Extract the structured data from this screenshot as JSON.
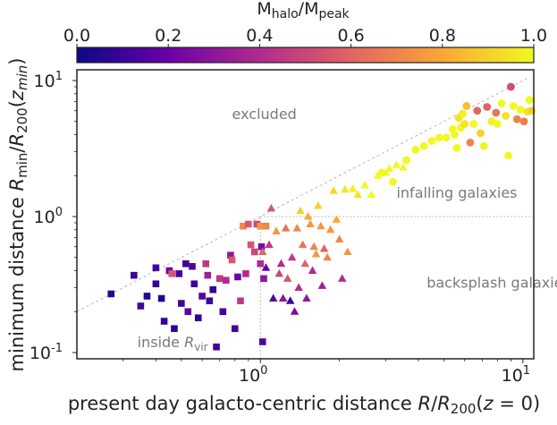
{
  "chart_data": {
    "type": "scatter",
    "xscale": "log",
    "yscale": "log",
    "xlim": [
      0.2,
      11
    ],
    "ylim": [
      0.09,
      12
    ],
    "xlabel": "present day galacto-centric distance R/R200(z = 0)",
    "ylabel": "minimum distance Rmin/R200(zmin)",
    "x_tick_labels": [
      {
        "value": 1,
        "label": "10^0"
      },
      {
        "value": 10,
        "label": "10^1"
      }
    ],
    "y_tick_labels": [
      {
        "value": 0.1,
        "label": "10^-1"
      },
      {
        "value": 1,
        "label": "10^0"
      },
      {
        "value": 10,
        "label": "10^1"
      }
    ],
    "colorbar": {
      "label": "M_halo/M_peak",
      "min": 0.0,
      "max": 1.0,
      "ticks": [
        "0.0",
        "0.2",
        "0.4",
        "0.6",
        "0.8",
        "1.0"
      ],
      "colormap": "plasma",
      "stops": [
        "#0d0887",
        "#6a00a8",
        "#b12a90",
        "#e16462",
        "#fca636",
        "#f0f921"
      ]
    },
    "reference_lines": [
      {
        "name": "one-to-one",
        "style": "dashed",
        "points": [
          [
            0.2,
            0.2
          ],
          [
            10.6,
            10.6
          ]
        ]
      },
      {
        "name": "x = 1 boundary",
        "style": "dotted",
        "points": [
          [
            1,
            0.09
          ],
          [
            1,
            1
          ]
        ]
      },
      {
        "name": "y = 1 boundary",
        "style": "dotted",
        "points": [
          [
            1,
            1
          ],
          [
            11,
            1
          ]
        ]
      }
    ],
    "annotations": [
      {
        "text": "excluded",
        "x": 0.78,
        "y": 5.2
      },
      {
        "text": "infalling galaxies",
        "x": 3.3,
        "y": 1.38
      },
      {
        "text": "backsplash galaxies",
        "x": 4.3,
        "y": 0.3
      },
      {
        "text_main": "inside R",
        "text_sub": "vir",
        "x": 0.34,
        "y": 0.11
      }
    ],
    "series": [
      {
        "marker": "square",
        "points": [
          [
            0.27,
            0.27,
            0.05
          ],
          [
            0.33,
            0.37,
            0.1
          ],
          [
            0.35,
            0.22,
            0.12
          ],
          [
            0.37,
            0.26,
            0.05
          ],
          [
            0.4,
            0.42,
            0.12
          ],
          [
            0.4,
            0.32,
            0.08
          ],
          [
            0.42,
            0.25,
            0.05
          ],
          [
            0.43,
            0.17,
            0.08
          ],
          [
            0.45,
            0.4,
            0.2
          ],
          [
            0.46,
            0.38,
            0.55
          ],
          [
            0.47,
            0.15,
            0.06
          ],
          [
            0.49,
            0.38,
            0.12
          ],
          [
            0.5,
            0.23,
            0.12
          ],
          [
            0.52,
            0.45,
            0.1
          ],
          [
            0.53,
            0.2,
            0.18
          ],
          [
            0.55,
            0.43,
            0.15
          ],
          [
            0.56,
            0.32,
            0.1
          ],
          [
            0.58,
            0.18,
            0.08
          ],
          [
            0.6,
            0.26,
            0.15
          ],
          [
            0.62,
            0.45,
            0.45
          ],
          [
            0.63,
            0.37,
            0.35
          ],
          [
            0.64,
            0.24,
            0.1
          ],
          [
            0.66,
            0.29,
            0.08
          ],
          [
            0.68,
            0.11,
            0.1
          ],
          [
            0.7,
            0.35,
            0.45
          ],
          [
            0.72,
            0.2,
            0.12
          ],
          [
            0.74,
            0.34,
            0.4
          ],
          [
            0.77,
            0.52,
            0.3
          ],
          [
            0.78,
            0.48,
            0.55
          ],
          [
            0.8,
            0.15,
            0.12
          ],
          [
            0.82,
            0.36,
            0.2
          ],
          [
            0.84,
            0.24,
            0.45
          ],
          [
            0.86,
            0.85,
            0.7
          ],
          [
            0.88,
            0.38,
            0.4
          ],
          [
            0.9,
            0.88,
            0.55
          ],
          [
            0.92,
            0.62,
            0.55
          ],
          [
            0.95,
            0.55,
            0.5
          ],
          [
            0.97,
            0.88,
            0.5
          ],
          [
            1.0,
            0.85,
            0.75
          ],
          [
            1.0,
            0.45,
            0.4
          ],
          [
            1.01,
            0.6,
            0.25
          ],
          [
            1.02,
            0.12,
            0.15
          ],
          [
            1.03,
            0.35,
            0.3
          ],
          [
            1.05,
            0.85,
            0.7
          ]
        ]
      },
      {
        "marker": "triangle",
        "points": [
          [
            1.02,
            0.55,
            0.6
          ],
          [
            1.05,
            0.42,
            0.2
          ],
          [
            1.08,
            0.62,
            0.45
          ],
          [
            1.1,
            1.15,
            0.55
          ],
          [
            1.12,
            0.25,
            0.15
          ],
          [
            1.15,
            0.78,
            0.75
          ],
          [
            1.18,
            0.38,
            0.5
          ],
          [
            1.2,
            0.45,
            0.4
          ],
          [
            1.22,
            0.25,
            0.3
          ],
          [
            1.25,
            0.82,
            0.65
          ],
          [
            1.27,
            0.35,
            0.55
          ],
          [
            1.3,
            0.24,
            0.1
          ],
          [
            1.32,
            0.5,
            0.45
          ],
          [
            1.35,
            0.2,
            0.25
          ],
          [
            1.38,
            0.82,
            0.7
          ],
          [
            1.4,
            0.3,
            0.4
          ],
          [
            1.42,
            1.1,
            0.9
          ],
          [
            1.45,
            0.62,
            0.65
          ],
          [
            1.48,
            0.45,
            0.6
          ],
          [
            1.5,
            0.25,
            0.3
          ],
          [
            1.52,
            1.0,
            0.8
          ],
          [
            1.55,
            0.88,
            0.75
          ],
          [
            1.58,
            0.4,
            0.4
          ],
          [
            1.6,
            0.6,
            0.7
          ],
          [
            1.63,
            0.53,
            0.75
          ],
          [
            1.66,
            1.2,
            0.9
          ],
          [
            1.7,
            0.85,
            0.75
          ],
          [
            1.72,
            0.31,
            0.35
          ],
          [
            1.75,
            0.58,
            0.6
          ],
          [
            1.8,
            0.5,
            0.7
          ],
          [
            1.85,
            0.8,
            0.75
          ],
          [
            1.9,
            1.55,
            0.92
          ],
          [
            1.95,
            0.95,
            0.8
          ],
          [
            2.0,
            0.68,
            0.7
          ],
          [
            2.05,
            0.35,
            0.4
          ],
          [
            2.1,
            1.58,
            0.95
          ],
          [
            2.15,
            0.55,
            0.75
          ],
          [
            2.25,
            1.6,
            0.98
          ],
          [
            2.35,
            1.45,
            0.95
          ],
          [
            2.5,
            1.7,
            1.0
          ],
          [
            2.65,
            1.45,
            1.0
          ],
          [
            2.8,
            2.0,
            1.0
          ],
          [
            3.0,
            2.1,
            1.0
          ],
          [
            3.1,
            2.25,
            1.0
          ],
          [
            3.3,
            2.4,
            1.0
          ],
          [
            3.5,
            2.3,
            1.0
          ]
        ]
      },
      {
        "marker": "circle",
        "points": [
          [
            2.9,
            2.1,
            1.0
          ],
          [
            3.2,
            1.8,
            1.0
          ],
          [
            3.6,
            2.6,
            1.0
          ],
          [
            3.9,
            3.1,
            1.0
          ],
          [
            4.2,
            3.3,
            1.0
          ],
          [
            4.5,
            3.6,
            1.0
          ],
          [
            4.8,
            3.8,
            1.0
          ],
          [
            5.1,
            3.8,
            1.0
          ],
          [
            5.4,
            4.4,
            1.0
          ],
          [
            5.5,
            4.0,
            1.0
          ],
          [
            5.6,
            3.2,
            1.0
          ],
          [
            5.7,
            5.3,
            0.95
          ],
          [
            5.8,
            4.5,
            1.0
          ],
          [
            5.9,
            5.7,
            0.98
          ],
          [
            6.0,
            4.8,
            0.95
          ],
          [
            6.1,
            6.5,
            0.85
          ],
          [
            6.3,
            3.5,
            0.7
          ],
          [
            6.5,
            4.8,
            1.0
          ],
          [
            6.7,
            6.0,
            0.6
          ],
          [
            6.9,
            4.1,
            0.9
          ],
          [
            7.1,
            3.3,
            0.98
          ],
          [
            7.3,
            6.4,
            0.6
          ],
          [
            7.6,
            5.0,
            0.98
          ],
          [
            7.9,
            5.8,
            0.65
          ],
          [
            8.0,
            4.8,
            1.0
          ],
          [
            8.3,
            6.8,
            1.0
          ],
          [
            8.6,
            5.5,
            0.95
          ],
          [
            8.8,
            2.8,
            1.0
          ],
          [
            9.0,
            9.0,
            0.52
          ],
          [
            9.2,
            6.5,
            1.0
          ],
          [
            9.5,
            5.2,
            0.7
          ],
          [
            9.8,
            6.1,
            1.0
          ],
          [
            10.1,
            5.0,
            0.68
          ],
          [
            10.4,
            5.9,
            0.95
          ],
          [
            10.6,
            7.2,
            1.0
          ],
          [
            10.8,
            6.0,
            0.9
          ]
        ]
      }
    ]
  }
}
